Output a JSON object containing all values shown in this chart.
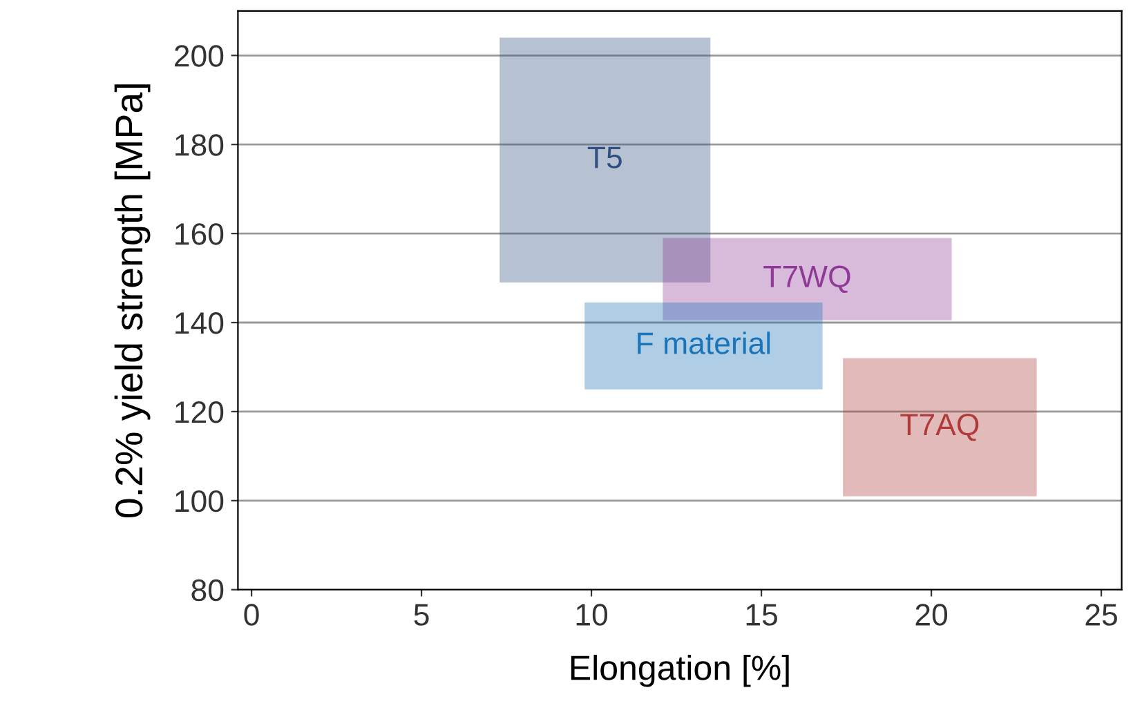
{
  "chart_data": {
    "type": "line",
    "xlabel": "Elongation [%]",
    "ylabel": "0.2% yield strength [MPa]",
    "xlim": [
      -0.4,
      25.6
    ],
    "xticks": [
      0,
      5,
      10,
      15,
      20,
      25
    ],
    "ylim": [
      80,
      210
    ],
    "yticks": [
      80,
      100,
      120,
      140,
      160,
      180,
      200
    ],
    "grid": "y",
    "series": [
      {
        "name": "T5",
        "color": "#2f4f7f",
        "x": [
          7.3,
          13.5
        ],
        "values": [
          null,
          null
        ],
        "lower": [
          149,
          149
        ],
        "upper": [
          204,
          204
        ]
      },
      {
        "name": "T7WQ",
        "color": "#8e3a96",
        "x": [
          12.1,
          20.6
        ],
        "values": [
          null,
          null
        ],
        "lower": [
          140.5,
          140.5
        ],
        "upper": [
          159,
          159
        ]
      },
      {
        "name": "F material",
        "color": "#1a74b8",
        "x": [
          9.8,
          16.8
        ],
        "values": [
          null,
          null
        ],
        "lower": [
          125,
          125
        ],
        "upper": [
          144.5,
          144.5
        ]
      },
      {
        "name": "T7AQ",
        "color": "#b03a3a",
        "x": [
          17.4,
          23.1
        ],
        "values": [
          null,
          null
        ],
        "lower": [
          101,
          101
        ],
        "upper": [
          132,
          132
        ]
      }
    ]
  }
}
